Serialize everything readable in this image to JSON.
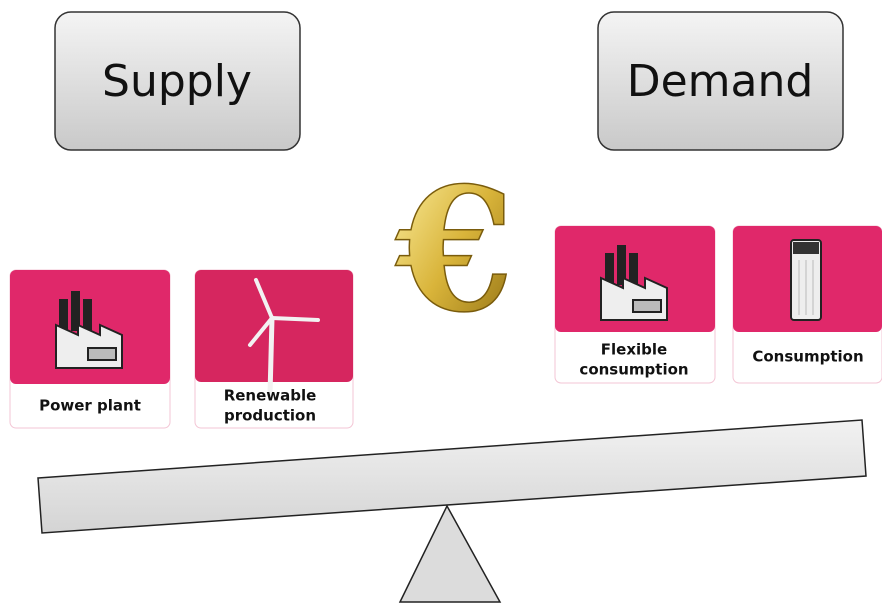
{
  "supply": {
    "title": "Supply",
    "items": [
      {
        "label": [
          "Power plant"
        ]
      },
      {
        "label": [
          "Renewable",
          "production"
        ]
      }
    ]
  },
  "demand": {
    "title": "Demand",
    "items": [
      {
        "label": [
          "Flexible",
          "consumption"
        ]
      },
      {
        "label": [
          "Consumption"
        ]
      }
    ]
  },
  "center_symbol": "€"
}
